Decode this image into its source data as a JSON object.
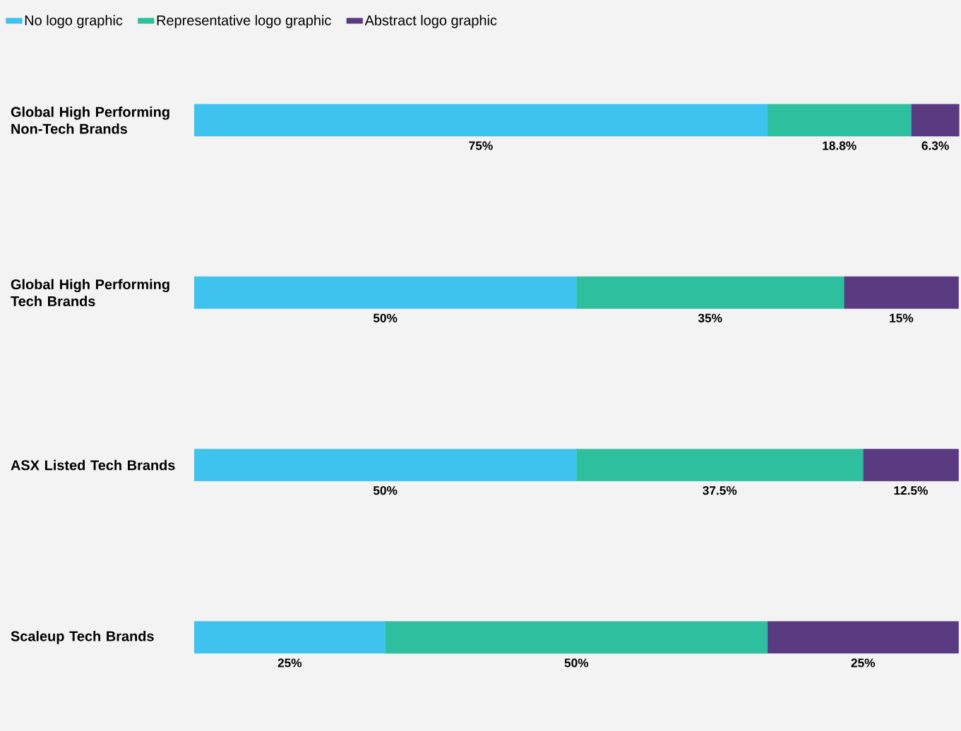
{
  "chart_data": {
    "type": "bar",
    "orientation": "horizontal",
    "stacked": true,
    "legend": "top left",
    "tick_labels": "y",
    "categories": [
      "Global High Performing Non-Tech Brands",
      "Global High Performing Tech Brands",
      "ASX Listed Tech Brands",
      "Scaleup Tech Brands"
    ],
    "series": [
      {
        "name": "No logo graphic",
        "color": "#3ec3ee",
        "values": [
          75,
          50,
          50,
          25
        ],
        "value_labels": [
          "75%",
          "50%",
          "50%",
          "25%"
        ]
      },
      {
        "name": "Representative logo graphic",
        "color": "#2ebf9f",
        "values": [
          18.8,
          35,
          37.5,
          50
        ],
        "value_labels": [
          "18.8%",
          "35%",
          "37.5%",
          "50%"
        ]
      },
      {
        "name": "Abstract logo graphic",
        "color": "#5a3a80",
        "values": [
          6.3,
          15,
          12.5,
          25
        ],
        "value_labels": [
          "6.3%",
          "15%",
          "12.5%",
          "25%"
        ]
      }
    ]
  }
}
